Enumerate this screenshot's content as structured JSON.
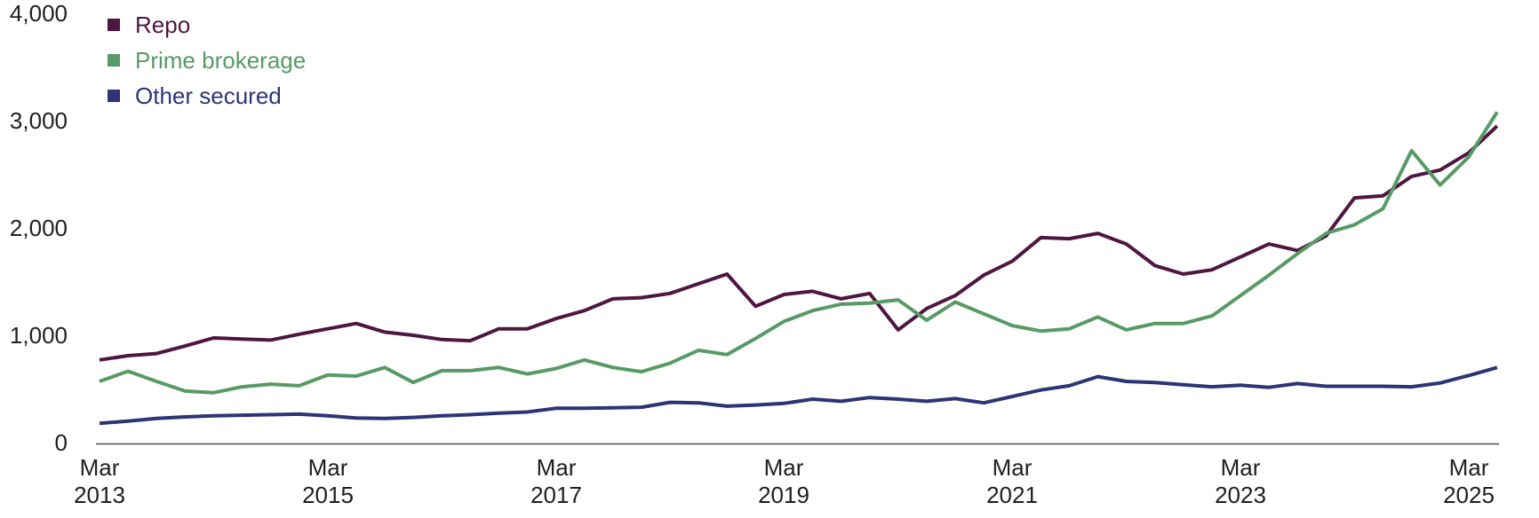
{
  "chart_data": {
    "type": "line",
    "title": "",
    "frequency": "quarterly",
    "x": [
      "Mar 2013",
      "Jun 2013",
      "Sep 2013",
      "Dec 2013",
      "Mar 2014",
      "Jun 2014",
      "Sep 2014",
      "Dec 2014",
      "Mar 2015",
      "Jun 2015",
      "Sep 2015",
      "Dec 2015",
      "Mar 2016",
      "Jun 2016",
      "Sep 2016",
      "Dec 2016",
      "Mar 2017",
      "Jun 2017",
      "Sep 2017",
      "Dec 2017",
      "Mar 2018",
      "Jun 2018",
      "Sep 2018",
      "Dec 2018",
      "Mar 2019",
      "Jun 2019",
      "Sep 2019",
      "Dec 2019",
      "Mar 2020",
      "Jun 2020",
      "Sep 2020",
      "Dec 2020",
      "Mar 2021",
      "Jun 2021",
      "Sep 2021",
      "Dec 2021",
      "Mar 2022",
      "Jun 2022",
      "Sep 2022",
      "Dec 2022",
      "Mar 2023",
      "Jun 2023",
      "Sep 2023",
      "Dec 2023",
      "Mar 2024",
      "Jun 2024",
      "Sep 2024",
      "Dec 2024",
      "Mar 2025",
      "Jun 2025"
    ],
    "series": [
      {
        "name": "Repo",
        "color": "#4e1640",
        "values": [
          770,
          810,
          830,
          900,
          975,
          965,
          955,
          1010,
          1060,
          1110,
          1030,
          1000,
          960,
          950,
          1060,
          1060,
          1155,
          1230,
          1340,
          1350,
          1390,
          1480,
          1570,
          1270,
          1380,
          1410,
          1340,
          1390,
          1050,
          1250,
          1370,
          1560,
          1690,
          1910,
          1900,
          1950,
          1850,
          1650,
          1570,
          1610,
          1730,
          1850,
          1790,
          1925,
          2280,
          2300,
          2480,
          2540,
          2700,
          2950
        ]
      },
      {
        "name": "Prime brokerage",
        "color": "#579a65",
        "values": [
          570,
          665,
          570,
          480,
          465,
          520,
          545,
          530,
          630,
          620,
          700,
          560,
          670,
          670,
          700,
          640,
          690,
          770,
          700,
          660,
          740,
          860,
          820,
          970,
          1130,
          1230,
          1290,
          1300,
          1330,
          1140,
          1310,
          1200,
          1090,
          1040,
          1060,
          1170,
          1050,
          1110,
          1110,
          1180,
          1370,
          1560,
          1760,
          1950,
          2030,
          2180,
          2720,
          2400,
          2660,
          3080
        ]
      },
      {
        "name": "Other secured",
        "color": "#2d3475",
        "values": [
          180,
          200,
          225,
          240,
          250,
          255,
          260,
          265,
          250,
          230,
          225,
          235,
          250,
          260,
          275,
          285,
          320,
          320,
          325,
          330,
          375,
          370,
          340,
          350,
          365,
          405,
          385,
          420,
          405,
          385,
          410,
          370,
          430,
          490,
          530,
          615,
          570,
          560,
          540,
          520,
          535,
          515,
          550,
          525,
          525,
          525,
          520,
          555,
          625,
          700
        ]
      }
    ],
    "ylim": [
      0,
      4000
    ],
    "grid": false,
    "legend_position": "top-left"
  },
  "y_axis": {
    "ticks": [
      {
        "label": "0",
        "value": 0
      },
      {
        "label": "1,000",
        "value": 1000
      },
      {
        "label": "2,000",
        "value": 2000
      },
      {
        "label": "3,000",
        "value": 3000
      },
      {
        "label": "4,000",
        "value": 4000
      }
    ]
  },
  "x_axis": {
    "ticks": [
      {
        "line1": "Mar",
        "line2": "2013",
        "index": 0
      },
      {
        "line1": "Mar",
        "line2": "2015",
        "index": 8
      },
      {
        "line1": "Mar",
        "line2": "2017",
        "index": 16
      },
      {
        "line1": "Mar",
        "line2": "2019",
        "index": 24
      },
      {
        "line1": "Mar",
        "line2": "2021",
        "index": 32
      },
      {
        "line1": "Mar",
        "line2": "2023",
        "index": 40
      },
      {
        "line1": "Mar",
        "line2": "2025",
        "index": 48
      }
    ]
  },
  "colors": {
    "axis_line": "#4a4a4a",
    "tick_text": "#202020",
    "background": "#ffffff"
  }
}
